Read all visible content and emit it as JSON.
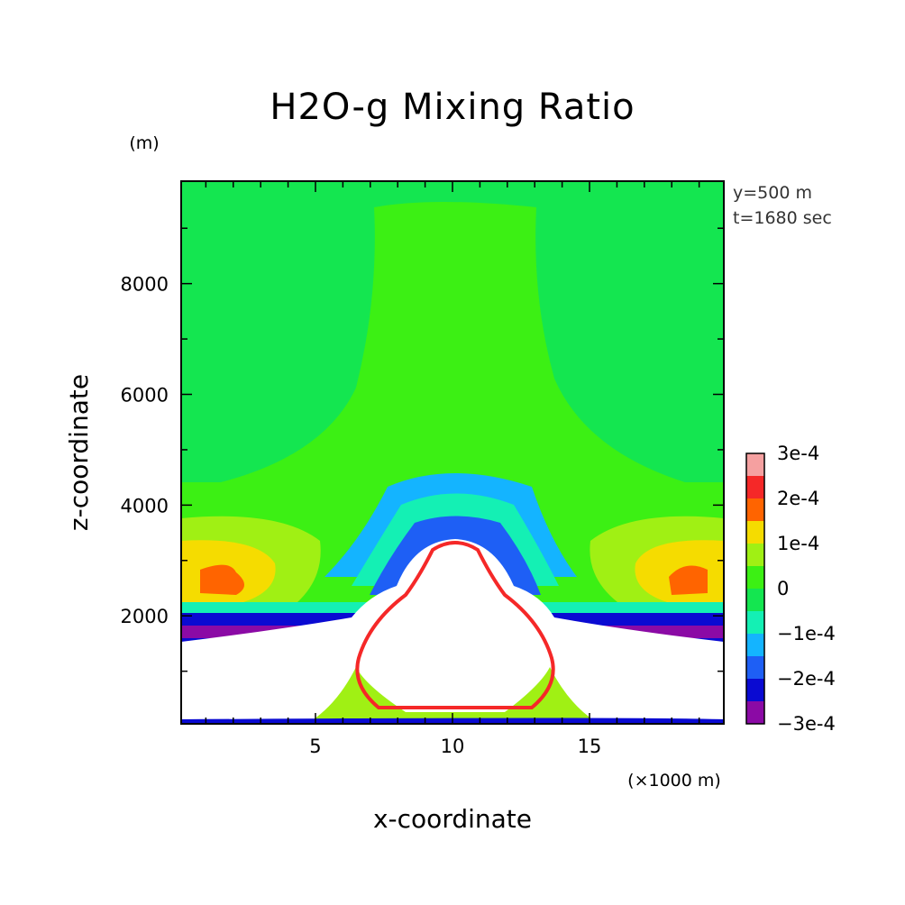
{
  "chart_data": {
    "type": "heatmap",
    "title": "H2O-g Mixing Ratio",
    "xlabel": "x-coordinate",
    "ylabel": "z-coordinate",
    "x_unit": "(×1000 m)",
    "y_unit": "(m)",
    "annotations": [
      "y=500 m",
      "t=1680 sec"
    ],
    "xlim": [
      0.1,
      19.9
    ],
    "ylim": [
      50,
      9850
    ],
    "x_ticks": [
      5,
      10,
      15
    ],
    "y_ticks": [
      2000,
      4000,
      6000,
      8000
    ],
    "colorbar": {
      "min": -0.0003,
      "max": 0.0003,
      "labels": [
        {
          "text": "3e-4",
          "value": 0.0003
        },
        {
          "text": "2e-4",
          "value": 0.0002
        },
        {
          "text": "1e-4",
          "value": 0.0001
        },
        {
          "text": "0",
          "value": 0
        },
        {
          "text": "−1e-4",
          "value": -0.0001
        },
        {
          "text": "−2e-4",
          "value": -0.0002
        },
        {
          "text": "−3e-4",
          "value": -0.0003
        }
      ],
      "colors": [
        "#8b0aa5",
        "#0a0ad2",
        "#1e5ff5",
        "#14b4ff",
        "#14f0b4",
        "#14e650",
        "#3cf014",
        "#a0f014",
        "#f5dc00",
        "#ff6400",
        "#f52828",
        "#f5a0a0"
      ]
    }
  }
}
